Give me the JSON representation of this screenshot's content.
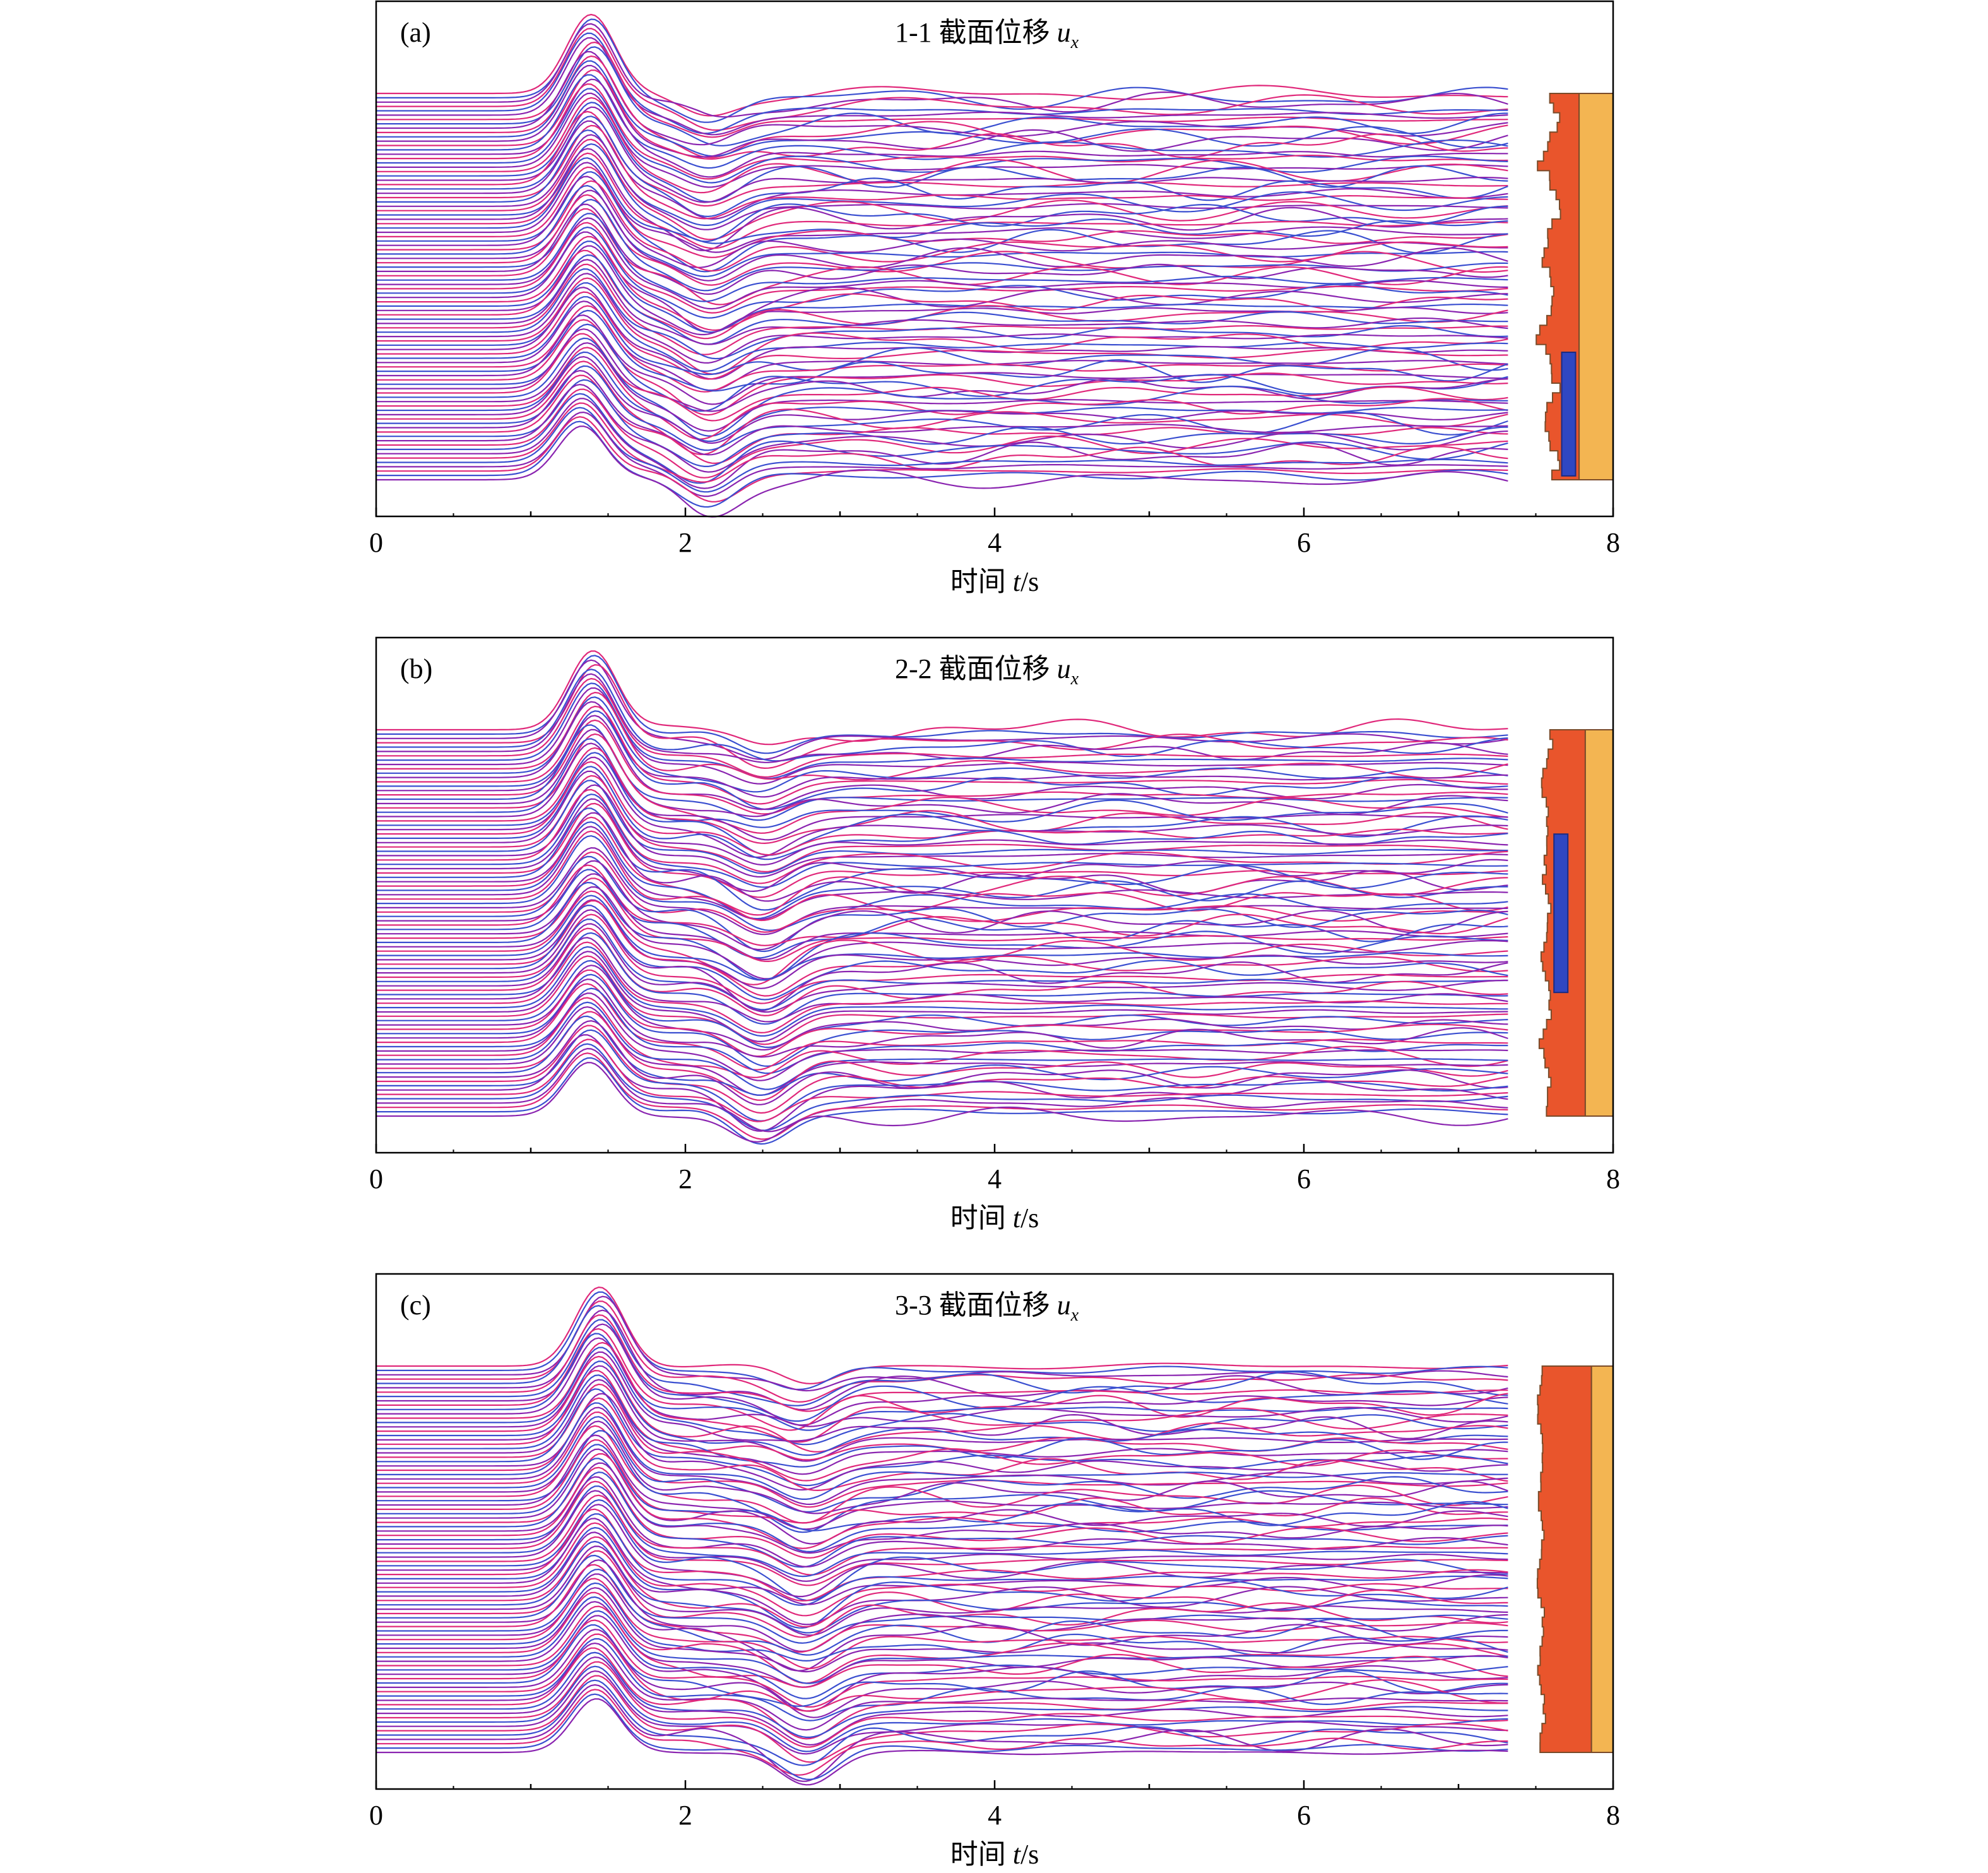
{
  "colors": {
    "trace_blue": "#3a4fd0",
    "trace_magenta": "#e0287a",
    "trace_purple": "#8a24b0",
    "profile_blue": "#2f47c2",
    "profile_orange": "#e9552c",
    "profile_yellow": "#f3b552",
    "profile_edge": "#7a4b2a",
    "frame": "#000000"
  },
  "chart_data": [
    {
      "type": "line",
      "panel_label": "(a)",
      "title": "1-1 截面位移 ",
      "title_var": "u",
      "title_sub": "x",
      "xlabel_text": "时间 ",
      "xlabel_var": "t",
      "xlabel_unit": "/s",
      "xlim": [
        0,
        8
      ],
      "xticks": [
        0,
        2,
        4,
        6,
        8
      ],
      "minor_ticks": [
        1,
        3,
        5,
        7
      ],
      "trace_end": 7.32,
      "trace_count": 90,
      "peak_time": 1.35,
      "trough_time": 2.15,
      "profile": {
        "blue_rows": [
          0.67,
          0.99
        ],
        "orange_right": 7.78,
        "yellow_right": 8.0,
        "left_edge_min": 7.5,
        "left_edge_max": 7.68
      }
    },
    {
      "type": "line",
      "panel_label": "(b)",
      "title": "2-2 截面位移 ",
      "title_var": "u",
      "title_sub": "x",
      "xlabel_text": "时间 ",
      "xlabel_var": "t",
      "xlabel_unit": "/s",
      "xlim": [
        0,
        8
      ],
      "xticks": [
        0,
        2,
        4,
        6,
        8
      ],
      "minor_ticks": [
        1,
        3,
        5,
        7
      ],
      "trace_end": 7.32,
      "trace_count": 90,
      "peak_time": 1.38,
      "trough_time": 2.5,
      "profile": {
        "blue_rows": [
          0.27,
          0.68
        ],
        "orange_right": 7.82,
        "yellow_right": 8.0,
        "left_edge_min": 7.52,
        "left_edge_max": 7.62
      }
    },
    {
      "type": "line",
      "panel_label": "(c)",
      "title": "3-3 截面位移 ",
      "title_var": "u",
      "title_sub": "x",
      "xlabel_text": "时间 ",
      "xlabel_var": "t",
      "xlabel_unit": "/s",
      "xlim": [
        0,
        8
      ],
      "xticks": [
        0,
        2,
        4,
        6,
        8
      ],
      "minor_ticks": [
        1,
        3,
        5,
        7
      ],
      "trace_end": 7.32,
      "trace_count": 90,
      "peak_time": 1.42,
      "trough_time": 2.78,
      "profile": {
        "blue_rows": null,
        "orange_right": 7.86,
        "yellow_right": 8.0,
        "left_edge_min": 7.5,
        "left_edge_max": 7.57
      }
    }
  ]
}
